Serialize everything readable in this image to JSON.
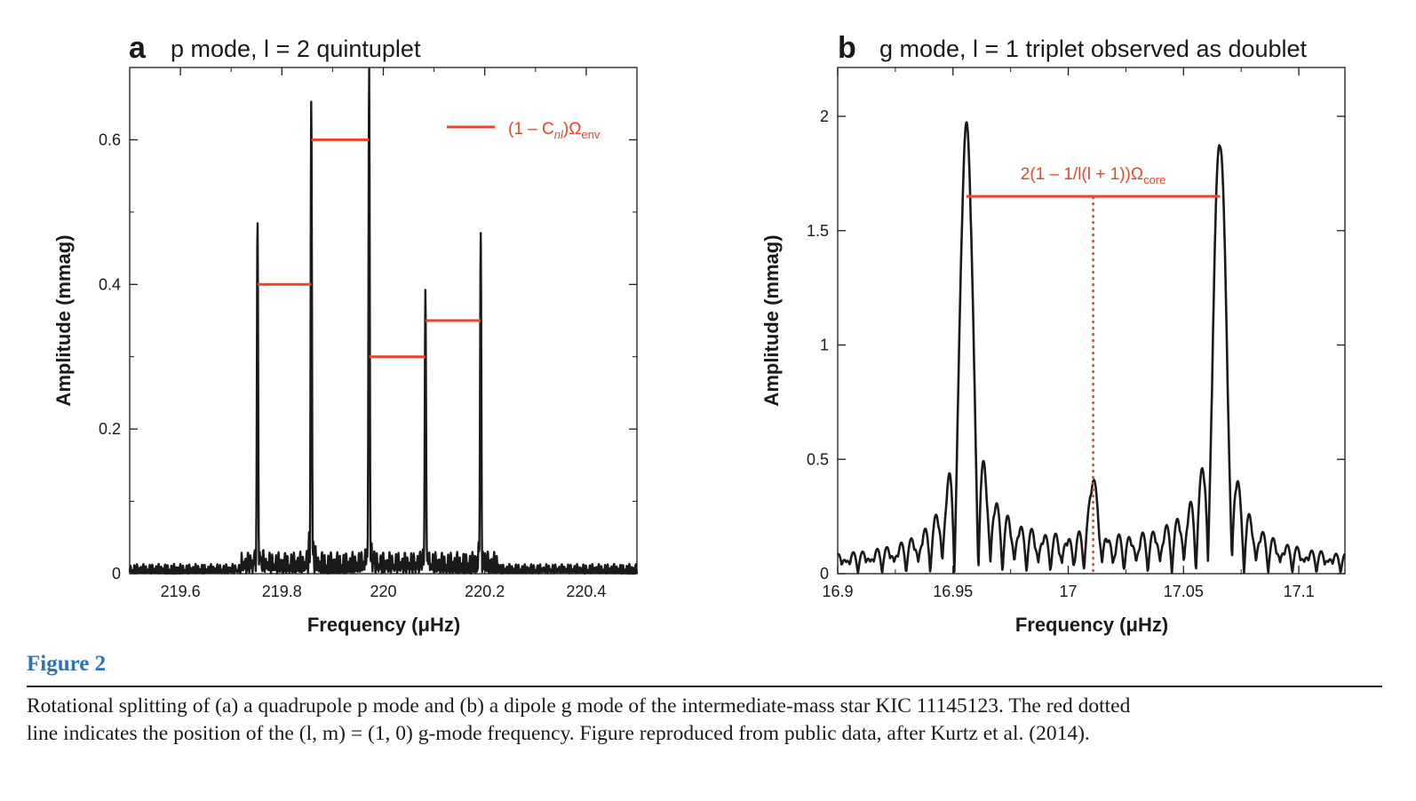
{
  "figure_label": "Figure 2",
  "caption": {
    "line1": "Rotational splitting of (a) a quadrupole p mode and (b) a dipole g mode of the intermediate-mass star KIC 11145123. The red dotted",
    "line2": "line indicates the position of the (l, m) = (1, 0) g-mode frequency. Figure reproduced from public data, after Kurtz et al. (2014)."
  },
  "colors": {
    "trace": "#1a1a1a",
    "annotation": "#e8452a",
    "caption_label": "#2b74b8"
  },
  "chart_data": [
    {
      "type": "line",
      "panel_letter": "a",
      "title": "p mode, l = 2 quintuplet",
      "xlabel": "Frequency (μHz)",
      "ylabel": "Amplitude (mmag)",
      "xlim": [
        219.5,
        220.5
      ],
      "ylim": [
        0,
        0.7
      ],
      "xticks": [
        219.6,
        219.8,
        220,
        220.2,
        220.4
      ],
      "xtick_labels": [
        "219.6",
        "219.8",
        "220",
        "220.2",
        "220.4"
      ],
      "yticks": [
        0,
        0.2,
        0.4,
        0.6
      ],
      "ytick_labels": [
        "0",
        "0.2",
        "0.4",
        "0.6"
      ],
      "peaks": [
        {
          "x": 219.752,
          "amplitude": 0.48
        },
        {
          "x": 219.858,
          "amplitude": 0.65
        },
        {
          "x": 219.972,
          "amplitude": 0.7
        },
        {
          "x": 220.083,
          "amplitude": 0.39
        },
        {
          "x": 220.192,
          "amplitude": 0.46
        }
      ],
      "splitting_lines": [
        {
          "x1": 219.752,
          "x2": 219.858,
          "y": 0.4
        },
        {
          "x1": 219.858,
          "x2": 219.972,
          "y": 0.6
        },
        {
          "x1": 219.972,
          "x2": 220.083,
          "y": 0.3
        },
        {
          "x1": 220.083,
          "x2": 220.192,
          "y": 0.35
        }
      ],
      "legend": {
        "position": "top-right",
        "label_pre": "(1 – C",
        "label_sub": "nl",
        "label_post": ")Ω",
        "label_sub2": "env"
      }
    },
    {
      "type": "line",
      "panel_letter": "b",
      "title": "g mode, l = 1 triplet observed as doublet",
      "xlabel": "Frequency (μHz)",
      "ylabel": "Amplitude (mmag)",
      "xlim": [
        16.9,
        17.12
      ],
      "ylim": [
        0,
        2
      ],
      "xticks": [
        16.9,
        16.95,
        17,
        17.05,
        17.1
      ],
      "xtick_labels": [
        "16.9",
        "16.95",
        "17",
        "17.05",
        "17.1"
      ],
      "yticks": [
        0,
        0.5,
        1,
        1.5,
        2
      ],
      "ytick_labels": [
        "0",
        "0.5",
        "1",
        "1.5",
        "2"
      ],
      "peaks": [
        {
          "x": 16.9558,
          "amplitude": 1.93
        },
        {
          "x": 17.0658,
          "amplitude": 1.87
        }
      ],
      "splitting_line": {
        "x1": 16.9558,
        "x2": 17.0658,
        "y": 1.65
      },
      "center_line": {
        "x": 17.0108,
        "y_top": 1.65
      },
      "annotation": {
        "text_pre": "2(1 – 1/l(l + 1))Ω",
        "text_sub": "core"
      }
    }
  ]
}
